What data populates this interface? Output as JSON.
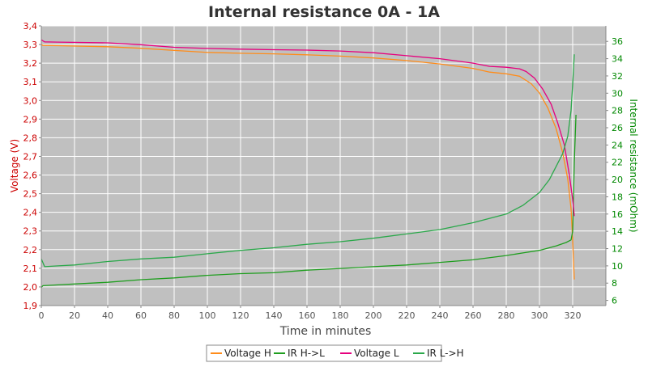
{
  "chart_data": {
    "type": "line",
    "title": "Internal resistance  0A - 1A",
    "xlabel": "Time in minutes",
    "ylabel": "Voltage (V)",
    "y2label": "Internal resistance (mOhm)",
    "xlim": [
      0,
      340
    ],
    "ylim": [
      1.9,
      3.4
    ],
    "y2lim": [
      5.4,
      37.8
    ],
    "x_ticks": [
      0,
      20,
      40,
      60,
      80,
      100,
      120,
      140,
      160,
      180,
      200,
      220,
      240,
      260,
      280,
      300,
      320
    ],
    "y_ticks": [
      1.9,
      2.0,
      2.1,
      2.2,
      2.3,
      2.4,
      2.5,
      2.6,
      2.7,
      2.8,
      2.9,
      3.0,
      3.1,
      3.2,
      3.3,
      3.4
    ],
    "y2_ticks": [
      6,
      8,
      10,
      12,
      14,
      16,
      18,
      20,
      22,
      24,
      26,
      28,
      30,
      32,
      34,
      36
    ],
    "grid": true,
    "legend_position": "bottom",
    "background": "#c0c0c0",
    "series": [
      {
        "name": "Voltage H",
        "axis": "left",
        "color": "#ff8c1a",
        "x": [
          0,
          1,
          10,
          40,
          60,
          80,
          100,
          120,
          140,
          160,
          180,
          200,
          220,
          240,
          260,
          270,
          280,
          288,
          295,
          300,
          305,
          310,
          314,
          317,
          319,
          320,
          321
        ],
        "y": [
          3.3,
          3.295,
          3.294,
          3.288,
          3.28,
          3.268,
          3.258,
          3.253,
          3.25,
          3.245,
          3.238,
          3.228,
          3.214,
          3.196,
          3.172,
          3.152,
          3.143,
          3.13,
          3.09,
          3.04,
          2.96,
          2.85,
          2.72,
          2.58,
          2.42,
          2.25,
          2.04
        ]
      },
      {
        "name": "IR H->L",
        "axis": "right",
        "color": "#1e9e1e",
        "x": [
          0,
          1,
          10,
          20,
          40,
          60,
          80,
          100,
          120,
          140,
          160,
          180,
          200,
          220,
          240,
          260,
          280,
          290,
          300,
          310,
          316,
          319,
          320,
          321,
          322
        ],
        "y": [
          7.5,
          7.7,
          7.8,
          7.9,
          8.1,
          8.4,
          8.6,
          8.9,
          9.1,
          9.2,
          9.5,
          9.7,
          9.9,
          10.1,
          10.4,
          10.7,
          11.2,
          11.5,
          11.8,
          12.3,
          12.7,
          13.0,
          14.0,
          22.0,
          27.5
        ]
      },
      {
        "name": "Voltage L",
        "axis": "left",
        "color": "#e6007e",
        "x": [
          0,
          2,
          10,
          40,
          60,
          80,
          100,
          120,
          140,
          160,
          180,
          200,
          220,
          240,
          260,
          270,
          280,
          288,
          292,
          297,
          302,
          307,
          311,
          315,
          318,
          320,
          321
        ],
        "y": [
          3.325,
          3.314,
          3.313,
          3.309,
          3.299,
          3.285,
          3.279,
          3.275,
          3.272,
          3.27,
          3.265,
          3.256,
          3.24,
          3.224,
          3.2,
          3.183,
          3.178,
          3.17,
          3.155,
          3.12,
          3.06,
          2.98,
          2.88,
          2.76,
          2.6,
          2.47,
          2.38
        ]
      },
      {
        "name": "IR L->H",
        "axis": "right",
        "color": "#2aa84a",
        "x": [
          0,
          2,
          10,
          20,
          40,
          60,
          80,
          100,
          120,
          140,
          160,
          180,
          200,
          220,
          240,
          260,
          270,
          280,
          290,
          300,
          306,
          310,
          314,
          317,
          319,
          320,
          321
        ],
        "y": [
          10.8,
          9.9,
          10.0,
          10.1,
          10.5,
          10.8,
          11.0,
          11.4,
          11.8,
          12.1,
          12.5,
          12.8,
          13.2,
          13.7,
          14.2,
          15.0,
          15.5,
          16.0,
          17.0,
          18.5,
          20.0,
          21.5,
          23.0,
          25.0,
          28.0,
          31.0,
          34.5
        ]
      }
    ]
  }
}
